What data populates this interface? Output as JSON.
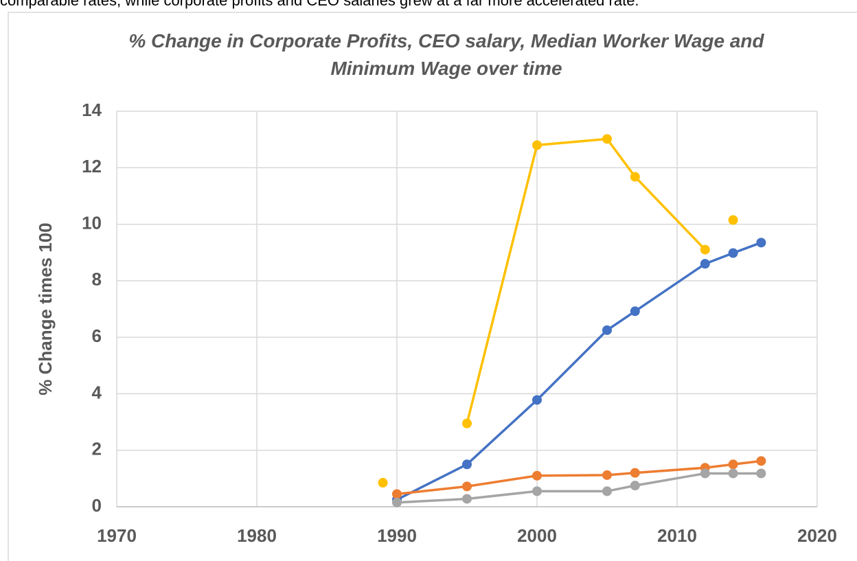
{
  "text_above": "comparable rates, while corporate profits and CEO salaries grew at a far more accelerated rate.",
  "chart_data": {
    "type": "line",
    "title": "% Change in Corporate Profits, CEO salary, Median Worker Wage and Minimum Wage over time",
    "ylabel": "% Change times 100",
    "xlim": [
      1970,
      2020
    ],
    "xticks": [
      1970,
      1980,
      1990,
      2000,
      2010,
      2020
    ],
    "ylim": [
      0,
      14
    ],
    "yticks": [
      0,
      2,
      4,
      6,
      8,
      10,
      12,
      14
    ],
    "grid": true,
    "series": [
      {
        "color": "#4472c4",
        "x": [
          1990,
          1995,
          2000,
          2005,
          2007,
          2012,
          2014,
          2016
        ],
        "values": [
          0.25,
          1.5,
          3.78,
          6.25,
          6.92,
          8.6,
          8.98,
          9.35
        ]
      },
      {
        "color": "#ed7d31",
        "x": [
          1990,
          1995,
          2000,
          2005,
          2007,
          2012,
          2014,
          2016
        ],
        "values": [
          0.45,
          0.72,
          1.1,
          1.12,
          1.2,
          1.38,
          1.5,
          1.62
        ]
      },
      {
        "color": "#a5a5a5",
        "x": [
          1990,
          1995,
          2000,
          2005,
          2007,
          2012,
          2014,
          2016
        ],
        "values": [
          0.15,
          0.28,
          0.55,
          0.55,
          0.75,
          1.18,
          1.18,
          1.18
        ]
      },
      {
        "color": "#ffc000",
        "x": [
          1989,
          null,
          1995,
          2000,
          2005,
          2007,
          2012,
          null,
          2014
        ],
        "values": [
          0.85,
          null,
          2.95,
          12.8,
          13.02,
          11.68,
          9.1,
          null,
          10.15
        ]
      }
    ]
  }
}
